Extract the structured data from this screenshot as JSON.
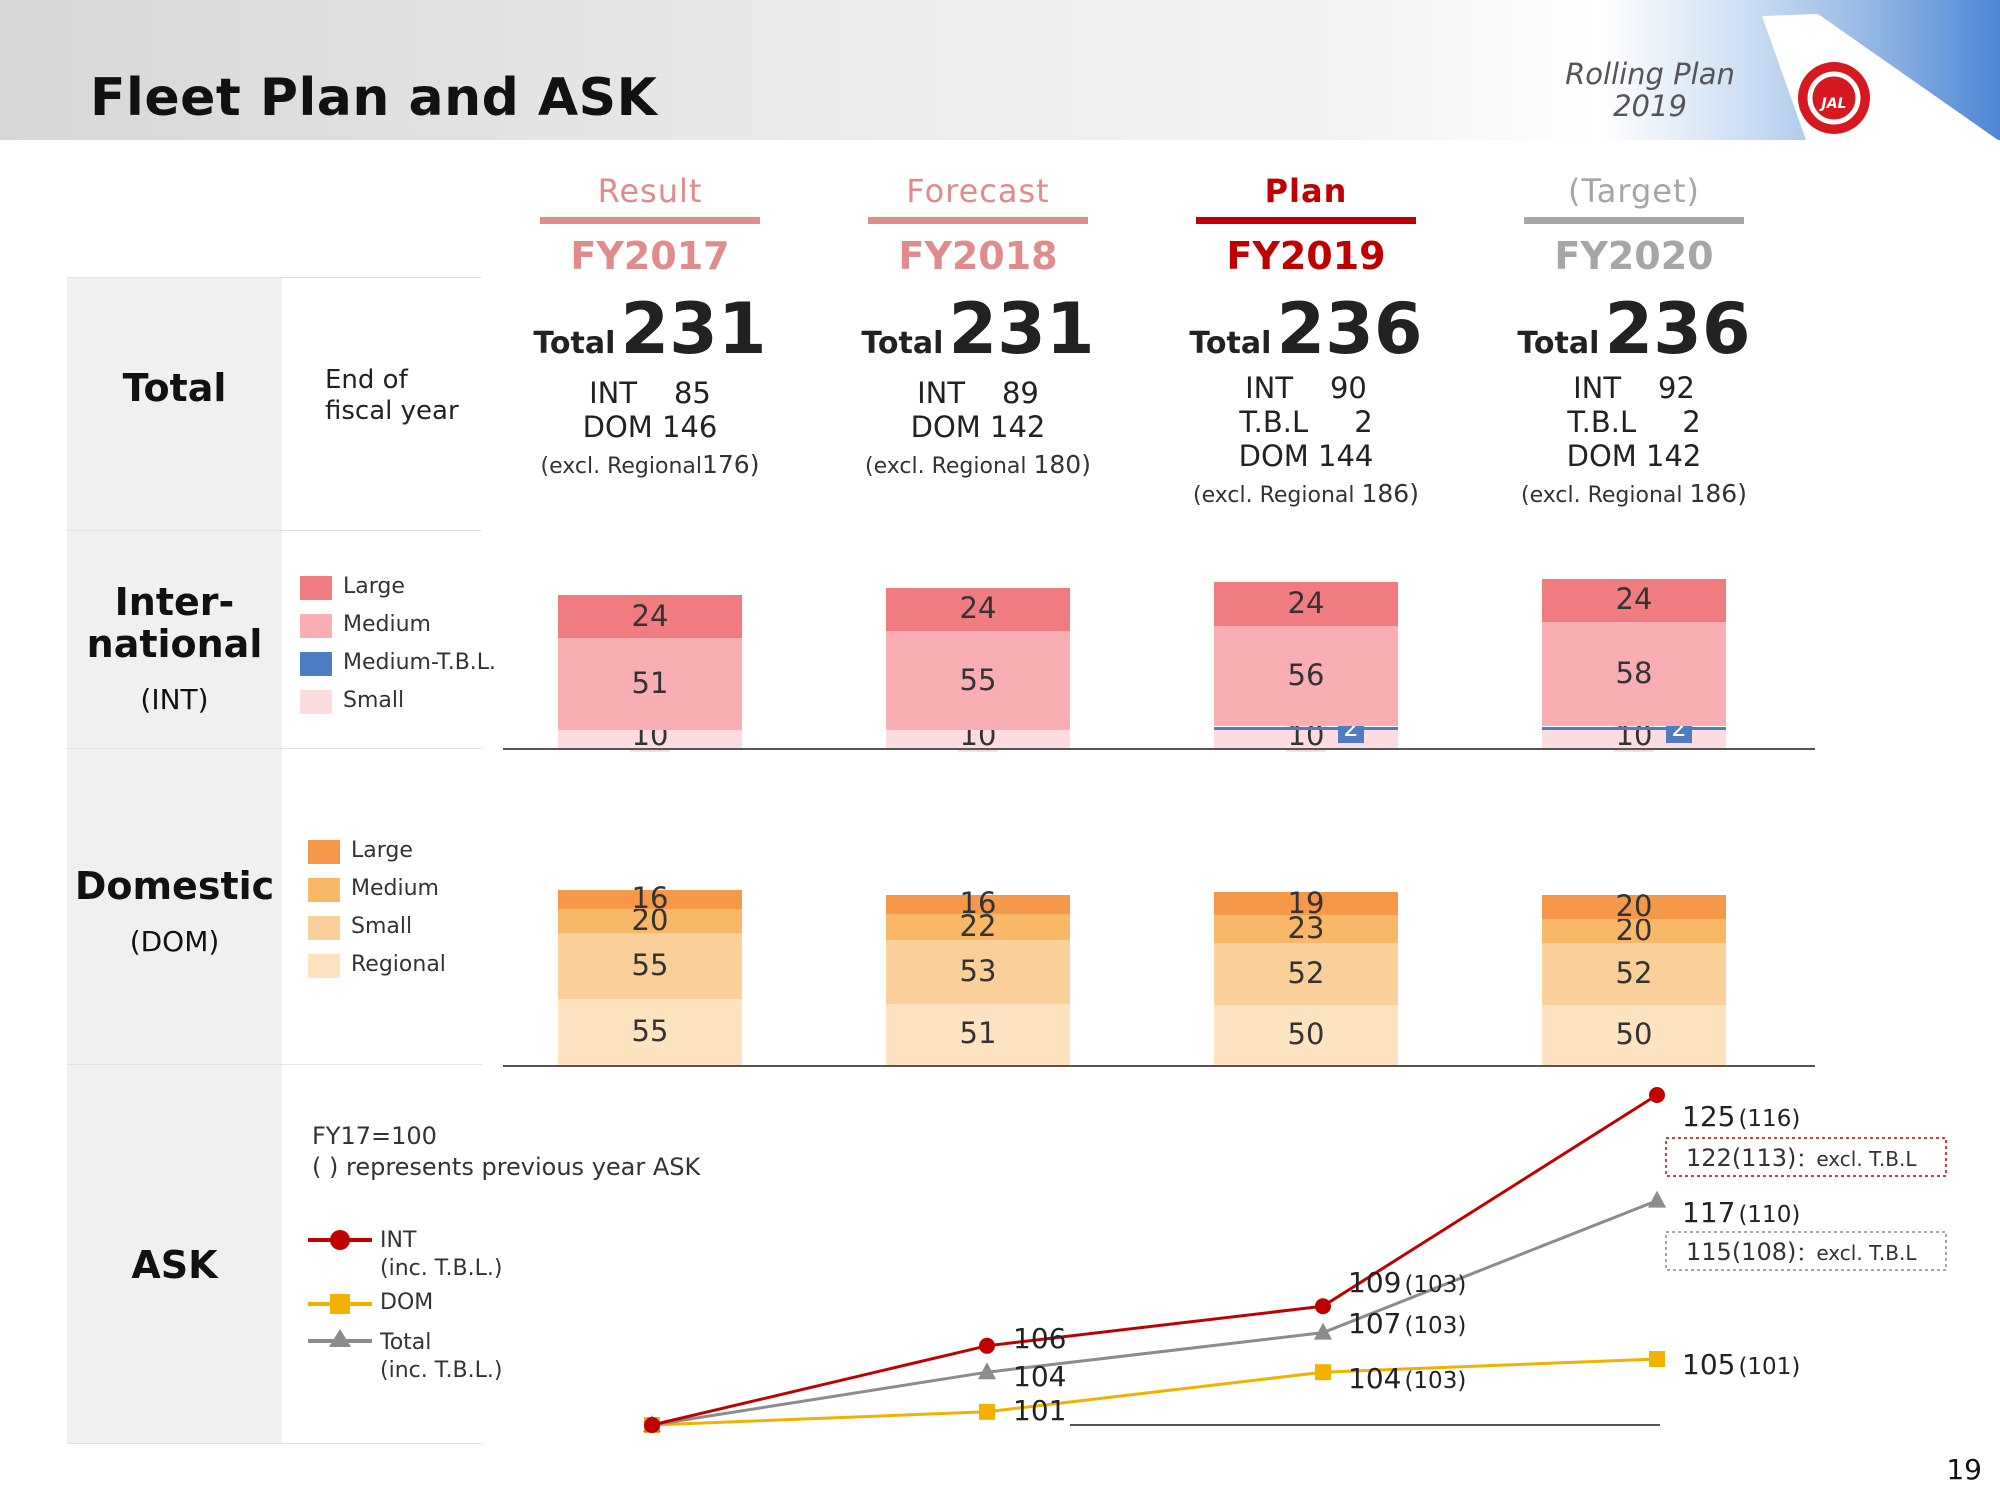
{
  "header": {
    "title": "Fleet Plan and ASK",
    "rolling_line1": "Rolling Plan",
    "rolling_line2": "2019",
    "logo_text": "JAL",
    "page_number": "19"
  },
  "rows": {
    "total": {
      "title": "Total",
      "note_line1": "End of",
      "note_line2": "fiscal year"
    },
    "int": {
      "title_line1": "Inter-",
      "title_line2": "national",
      "sub": "(INT)"
    },
    "dom": {
      "title": "Domestic",
      "sub": "(DOM)"
    },
    "ask": {
      "title": "ASK"
    }
  },
  "columns": [
    {
      "label": "Result",
      "fy": "FY2017",
      "total_word": "Total",
      "total": "231",
      "lines": [
        "INT    85",
        "DOM 146"
      ],
      "excl_text": "(excl. Regional",
      "excl_value": "176)"
    },
    {
      "label": "Forecast",
      "fy": "FY2018",
      "total_word": "Total",
      "total": "231",
      "lines": [
        "INT    89",
        "DOM 142"
      ],
      "excl_text": "(excl. Regional ",
      "excl_value": "180)"
    },
    {
      "label": "Plan",
      "fy": "FY2019",
      "total_word": "Total",
      "total": "236",
      "lines": [
        "INT    90",
        "T.B.L     2",
        "DOM 144"
      ],
      "excl_text": "(excl. Regional ",
      "excl_value": "186)"
    },
    {
      "label": "(Target)",
      "fy": "FY2020",
      "total_word": "Total",
      "total": "236",
      "lines": [
        "INT    92",
        "T.B.L     2",
        "DOM 142"
      ],
      "excl_text": "(excl. Regional ",
      "excl_value": "186)"
    }
  ],
  "colors": {
    "result": "#e08c8c",
    "forecast": "#e08c8c",
    "plan": "#c00000",
    "target": "#a6a6a6",
    "int_large": "#f07c80",
    "int_medium": "#f8aeb2",
    "int_medium_tbl": "#4d7cc0",
    "int_small": "#fcdcde",
    "dom_large": "#f5984a",
    "dom_medium": "#f8b868",
    "dom_small": "#fad09a",
    "dom_regional": "#fde3bf",
    "ask_int": "#c00000",
    "ask_dom": "#f2b000",
    "ask_total": "#8c8c8c"
  },
  "legends": {
    "int": [
      "Large",
      "Medium",
      "Medium-T.B.L.",
      "Small"
    ],
    "dom": [
      "Large",
      "Medium",
      "Small",
      "Regional"
    ],
    "ask_note_line1": "FY17=100",
    "ask_note_line2": "( ) represents previous year ASK",
    "ask_series": [
      {
        "line1": "INT",
        "line2": "(inc. T.B.L.)"
      },
      {
        "line1": "DOM",
        "line2": ""
      },
      {
        "line1": "Total",
        "line2": "(inc. T.B.L.)"
      }
    ]
  },
  "chart_data": [
    {
      "type": "bar",
      "title": "International",
      "categories": [
        "FY2017",
        "FY2018",
        "FY2019",
        "FY2020"
      ],
      "stacked": true,
      "series": [
        {
          "name": "Small",
          "values": [
            10,
            10,
            10,
            10
          ]
        },
        {
          "name": "Medium-T.B.L.",
          "values": [
            0,
            0,
            2,
            2
          ]
        },
        {
          "name": "Medium",
          "values": [
            51,
            55,
            56,
            58
          ]
        },
        {
          "name": "Large",
          "values": [
            24,
            24,
            24,
            24
          ]
        }
      ]
    },
    {
      "type": "bar",
      "title": "Domestic",
      "categories": [
        "FY2017",
        "FY2018",
        "FY2019",
        "FY2020"
      ],
      "stacked": true,
      "series": [
        {
          "name": "Regional",
          "values": [
            55,
            51,
            50,
            50
          ]
        },
        {
          "name": "Small",
          "values": [
            55,
            53,
            52,
            52
          ]
        },
        {
          "name": "Medium",
          "values": [
            20,
            22,
            23,
            20
          ]
        },
        {
          "name": "Large",
          "values": [
            16,
            16,
            19,
            20
          ]
        }
      ]
    },
    {
      "type": "line",
      "title": "ASK",
      "x": [
        "FY2017",
        "FY2018",
        "FY2019",
        "FY2020"
      ],
      "series": [
        {
          "name": "INT",
          "values": [
            100,
            106,
            109,
            125
          ],
          "prev": [
            "",
            "",
            "(103)",
            "(116)"
          ],
          "labels": [
            "",
            "106",
            "109",
            "125"
          ]
        },
        {
          "name": "DOM",
          "values": [
            100,
            101,
            104,
            105
          ],
          "prev": [
            "",
            "",
            "(103)",
            "(101)"
          ],
          "labels": [
            "",
            "101",
            "104",
            "105"
          ]
        },
        {
          "name": "Total",
          "values": [
            100,
            104,
            107,
            117
          ],
          "prev": [
            "",
            "",
            "(103)",
            "(110)"
          ],
          "labels": [
            "",
            "104",
            "107",
            "117"
          ]
        }
      ],
      "boxes": [
        {
          "value": "122",
          "prev": "(113)",
          "text": "：excl. T.B.L"
        },
        {
          "value": "115",
          "prev": "(108)",
          "text": "：excl. T.B.L"
        }
      ]
    }
  ]
}
